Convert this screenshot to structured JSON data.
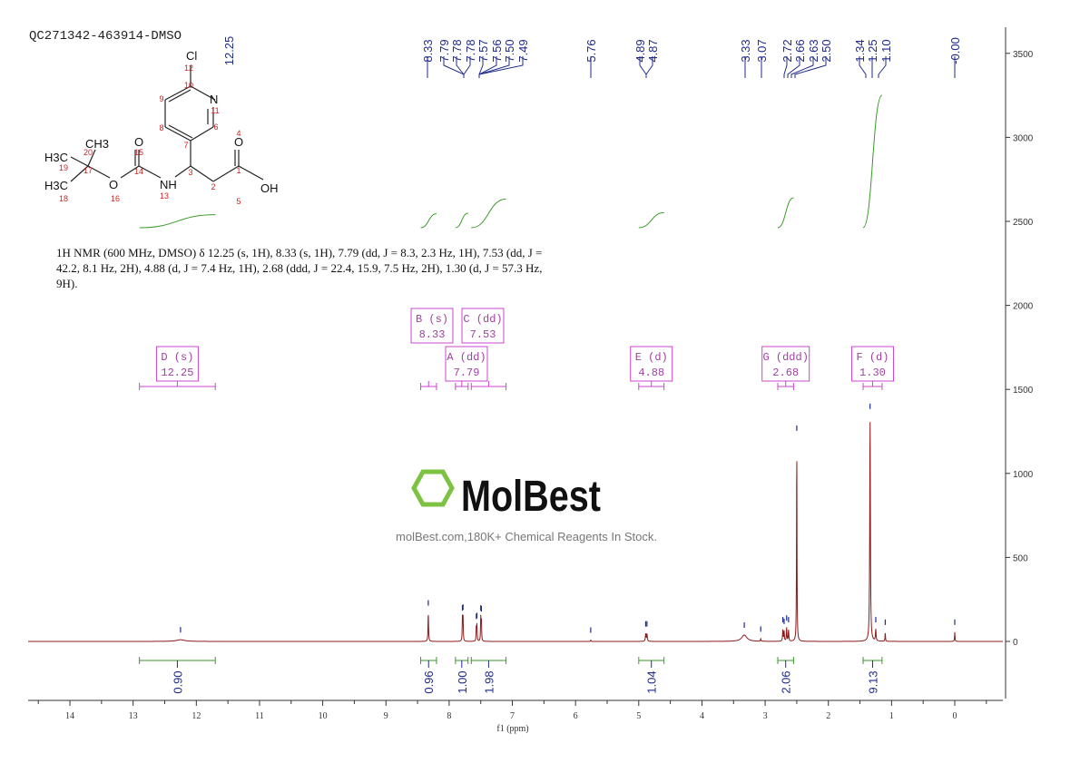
{
  "title": "QC271342-463914-DMSO",
  "description": "1H NMR (600 MHz, DMSO) δ 12.25 (s, 1H), 8.33 (s, 1H), 7.79 (dd, J = 8.3, 2.3 Hz, 1H), 7.53 (dd, J = 42.2, 8.1 Hz, 2H), 4.88 (d, J = 7.4 Hz, 1H), 2.68 (ddd, J = 22.4, 15.9, 7.5 Hz, 2H), 1.30 (d, J = 57.3 Hz, 9H).",
  "watermark": {
    "logo": "MolBest",
    "tagline": "molBest.com,180K+ Chemical Reagents In Stock."
  },
  "colors": {
    "spectrum": "#8b1a1a",
    "peak_labels": "#1f2a8a",
    "integrals": "#3a9a2a",
    "multiplets": "#cc44cc",
    "atom_numbers": "#cc2222",
    "logo_green": "#7dc242"
  },
  "structure": {
    "atoms": [
      "Cl",
      "N",
      "CH3",
      "O",
      "O",
      "H3C",
      "H3C",
      "O",
      "NH",
      "OH"
    ],
    "numbers": [
      "1",
      "2",
      "3",
      "4",
      "5",
      "6",
      "7",
      "8",
      "9",
      "10",
      "11",
      "12",
      "13",
      "14",
      "15",
      "16",
      "17",
      "18",
      "19",
      "20"
    ]
  },
  "chart_data": {
    "type": "line",
    "xlabel": "f1 (ppm)",
    "ylabel": "",
    "xlim": [
      14.7,
      -0.8
    ],
    "ylim": [
      -340,
      3650
    ],
    "x_reversed": true,
    "x_ticks": [
      14,
      13,
      12,
      11,
      10,
      9,
      8,
      7,
      6,
      5,
      4,
      3,
      2,
      1,
      0
    ],
    "y_ticks": [
      0,
      500,
      1000,
      1500,
      2000,
      2500,
      3000,
      3500
    ],
    "y_axis_side": "right",
    "grid": false,
    "peaks": [
      {
        "ppm": 12.25,
        "height": 10,
        "width": 0.08
      },
      {
        "ppm": 8.33,
        "height": 170,
        "width": 0.005
      },
      {
        "ppm": 7.79,
        "height": 140,
        "width": 0.004
      },
      {
        "ppm": 7.78,
        "height": 145,
        "width": 0.004
      },
      {
        "ppm": 7.57,
        "height": 90,
        "width": 0.004
      },
      {
        "ppm": 7.56,
        "height": 95,
        "width": 0.004
      },
      {
        "ppm": 7.5,
        "height": 140,
        "width": 0.004
      },
      {
        "ppm": 7.49,
        "height": 135,
        "width": 0.004
      },
      {
        "ppm": 5.76,
        "height": 8,
        "width": 0.004
      },
      {
        "ppm": 4.89,
        "height": 45,
        "width": 0.006
      },
      {
        "ppm": 4.87,
        "height": 45,
        "width": 0.006
      },
      {
        "ppm": 3.33,
        "height": 38,
        "width": 0.05
      },
      {
        "ppm": 3.07,
        "height": 14,
        "width": 0.005
      },
      {
        "ppm": 2.72,
        "height": 70,
        "width": 0.005
      },
      {
        "ppm": 2.7,
        "height": 60,
        "width": 0.005
      },
      {
        "ppm": 2.66,
        "height": 80,
        "width": 0.005
      },
      {
        "ppm": 2.63,
        "height": 70,
        "width": 0.005
      },
      {
        "ppm": 2.5,
        "height": 1210,
        "width": 0.004
      },
      {
        "ppm": 1.34,
        "height": 1340,
        "width": 0.006
      },
      {
        "ppm": 1.25,
        "height": 70,
        "width": 0.006
      },
      {
        "ppm": 1.1,
        "height": 55,
        "width": 0.004
      },
      {
        "ppm": 0.0,
        "height": 55,
        "width": 0.004
      }
    ],
    "peak_labels": [
      "12.25",
      "8.33",
      "7.79",
      "7.78",
      "7.78",
      "7.57",
      "7.56",
      "7.50",
      "7.49",
      "5.76",
      "4.89",
      "4.87",
      "3.33",
      "3.07",
      "2.72",
      "2.66",
      "2.63",
      "2.50",
      "1.34",
      "1.25",
      "1.10",
      "-0.00"
    ],
    "integrals": [
      {
        "from": 12.9,
        "to": 11.7,
        "value": "0.90"
      },
      {
        "from": 8.45,
        "to": 8.2,
        "value": "0.96"
      },
      {
        "from": 7.9,
        "to": 7.7,
        "value": "1.00"
      },
      {
        "from": 7.65,
        "to": 7.1,
        "value": "1.98"
      },
      {
        "from": 5.0,
        "to": 4.6,
        "value": "1.04"
      },
      {
        "from": 2.8,
        "to": 2.55,
        "value": "2.06"
      },
      {
        "from": 1.45,
        "to": 1.15,
        "value": "9.13"
      }
    ],
    "multiplets": [
      {
        "label": "D (s)",
        "shift": "12.25",
        "from": 12.9,
        "to": 11.7
      },
      {
        "label": "B (s)",
        "shift": "8.33",
        "from": 8.45,
        "to": 8.2
      },
      {
        "label": "C (dd)",
        "shift": "7.53",
        "from": 7.65,
        "to": 7.1
      },
      {
        "label": "A (dd)",
        "shift": "7.79",
        "from": 7.9,
        "to": 7.7
      },
      {
        "label": "E (d)",
        "shift": "4.88",
        "from": 5.0,
        "to": 4.6
      },
      {
        "label": "G (ddd)",
        "shift": "2.68",
        "from": 2.8,
        "to": 2.55
      },
      {
        "label": "F (d)",
        "shift": "1.30",
        "from": 1.45,
        "to": 1.15
      }
    ]
  }
}
